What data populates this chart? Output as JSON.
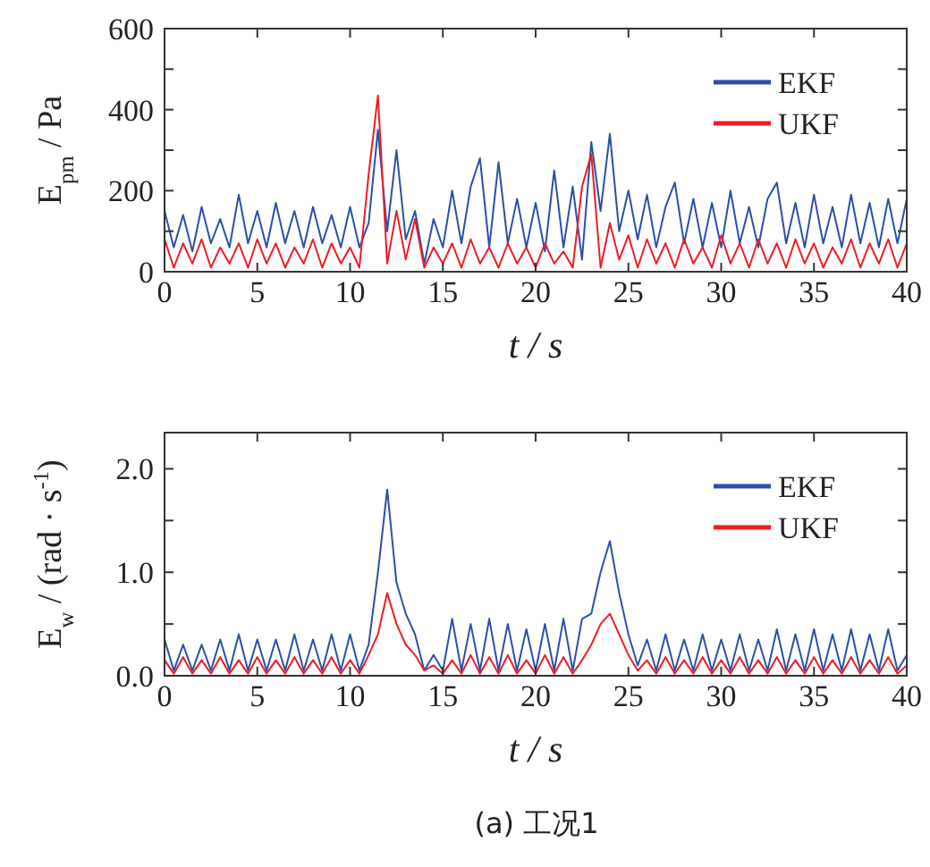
{
  "chart_data": [
    {
      "type": "line",
      "xlabel": "t / s",
      "ylabel": "E$_{pm}$ / Pa",
      "xlim": [
        0,
        40
      ],
      "ylim": [
        0,
        600
      ],
      "xticks": [
        0,
        5,
        10,
        15,
        20,
        25,
        30,
        35,
        40
      ],
      "yticks": [
        0,
        {
          "value": 100,
          "label": null
        },
        200,
        {
          "value": 300,
          "label": null
        },
        400,
        {
          "value": 500,
          "label": null
        },
        600
      ],
      "legend": "top right",
      "grid": false,
      "x": [
        0,
        0.5,
        1,
        1.5,
        2,
        2.5,
        3,
        3.5,
        4,
        4.5,
        5,
        5.5,
        6,
        6.5,
        7,
        7.5,
        8,
        8.5,
        9,
        9.5,
        10,
        10.5,
        11,
        11.5,
        12,
        12.5,
        13,
        13.5,
        14,
        14.5,
        15,
        15.5,
        16,
        16.5,
        17,
        17.5,
        18,
        18.5,
        19,
        19.5,
        20,
        20.5,
        21,
        21.5,
        22,
        22.5,
        23,
        23.5,
        24,
        24.5,
        25,
        25.5,
        26,
        26.5,
        27,
        27.5,
        28,
        28.5,
        29,
        29.5,
        30,
        30.5,
        31,
        31.5,
        32,
        32.5,
        33,
        33.5,
        34,
        34.5,
        35,
        35.5,
        36,
        36.5,
        37,
        37.5,
        38,
        38.5,
        39,
        39.5,
        40
      ],
      "series": [
        {
          "name": "EKF",
          "color": "#2a4fa8",
          "values": [
            150,
            60,
            140,
            50,
            160,
            70,
            130,
            60,
            190,
            70,
            150,
            60,
            170,
            70,
            150,
            60,
            160,
            70,
            140,
            60,
            160,
            60,
            120,
            350,
            100,
            300,
            80,
            150,
            20,
            130,
            60,
            200,
            70,
            210,
            280,
            60,
            270,
            70,
            180,
            60,
            170,
            50,
            250,
            60,
            210,
            30,
            320,
            150,
            340,
            100,
            200,
            80,
            190,
            60,
            160,
            220,
            70,
            180,
            60,
            170,
            60,
            200,
            70,
            160,
            60,
            180,
            220,
            70,
            170,
            60,
            190,
            70,
            160,
            60,
            190,
            70,
            170,
            60,
            180,
            70,
            180
          ]
        },
        {
          "name": "UKF",
          "color": "#ee1c25",
          "values": [
            80,
            10,
            70,
            20,
            80,
            10,
            60,
            20,
            70,
            10,
            80,
            20,
            70,
            10,
            60,
            20,
            80,
            10,
            70,
            20,
            60,
            10,
            240,
            435,
            20,
            150,
            30,
            130,
            10,
            60,
            20,
            70,
            10,
            80,
            20,
            60,
            10,
            70,
            20,
            60,
            10,
            70,
            20,
            50,
            10,
            210,
            290,
            10,
            120,
            30,
            90,
            10,
            80,
            20,
            70,
            10,
            80,
            20,
            60,
            10,
            90,
            20,
            70,
            10,
            80,
            20,
            70,
            10,
            80,
            20,
            70,
            10,
            60,
            20,
            80,
            10,
            70,
            20,
            80,
            10,
            70
          ]
        }
      ]
    },
    {
      "type": "line",
      "xlabel": "t / s",
      "ylabel": "E$_{w}$ / (rad · s$^{-1}$)",
      "xlim": [
        0,
        40
      ],
      "ylim": [
        0,
        2.35
      ],
      "xticks": [
        0,
        5,
        10,
        15,
        20,
        25,
        30,
        35,
        40
      ],
      "yticks": [
        {
          "value": 0,
          "label": "0.0"
        },
        {
          "value": 0.5,
          "label": null
        },
        {
          "value": 1,
          "label": "1.0"
        },
        {
          "value": 1.5,
          "label": null
        },
        {
          "value": 2,
          "label": "2.0"
        }
      ],
      "legend": "top right",
      "grid": false,
      "annotations": [
        "(a) 工况1"
      ],
      "x": [
        0,
        0.5,
        1,
        1.5,
        2,
        2.5,
        3,
        3.5,
        4,
        4.5,
        5,
        5.5,
        6,
        6.5,
        7,
        7.5,
        8,
        8.5,
        9,
        9.5,
        10,
        10.5,
        11,
        11.5,
        12,
        12.5,
        13,
        13.5,
        14,
        14.5,
        15,
        15.5,
        16,
        16.5,
        17,
        17.5,
        18,
        18.5,
        19,
        19.5,
        20,
        20.5,
        21,
        21.5,
        22,
        22.5,
        23,
        23.5,
        24,
        24.5,
        25,
        25.5,
        26,
        26.5,
        27,
        27.5,
        28,
        28.5,
        29,
        29.5,
        30,
        30.5,
        31,
        31.5,
        32,
        32.5,
        33,
        33.5,
        34,
        34.5,
        35,
        35.5,
        36,
        36.5,
        37,
        37.5,
        38,
        38.5,
        39,
        39.5,
        40
      ],
      "series": [
        {
          "name": "EKF",
          "color": "#2a4fa8",
          "values": [
            0.35,
            0.05,
            0.3,
            0.05,
            0.3,
            0.05,
            0.35,
            0.05,
            0.4,
            0.05,
            0.35,
            0.05,
            0.35,
            0.05,
            0.4,
            0.05,
            0.35,
            0.05,
            0.4,
            0.05,
            0.4,
            0.05,
            0.3,
            1.0,
            1.8,
            0.9,
            0.6,
            0.4,
            0.05,
            0.2,
            0.05,
            0.55,
            0.05,
            0.5,
            0.05,
            0.55,
            0.05,
            0.5,
            0.05,
            0.45,
            0.05,
            0.5,
            0.05,
            0.55,
            0.05,
            0.55,
            0.6,
            1.0,
            1.3,
            0.8,
            0.4,
            0.1,
            0.35,
            0.05,
            0.4,
            0.05,
            0.35,
            0.05,
            0.4,
            0.05,
            0.35,
            0.05,
            0.4,
            0.05,
            0.35,
            0.05,
            0.45,
            0.05,
            0.4,
            0.05,
            0.45,
            0.05,
            0.4,
            0.05,
            0.45,
            0.05,
            0.4,
            0.05,
            0.45,
            0.05,
            0.2
          ]
        },
        {
          "name": "UKF",
          "color": "#ee1c25",
          "values": [
            0.15,
            0.02,
            0.18,
            0.02,
            0.15,
            0.02,
            0.18,
            0.02,
            0.15,
            0.02,
            0.18,
            0.02,
            0.15,
            0.02,
            0.18,
            0.02,
            0.15,
            0.02,
            0.18,
            0.02,
            0.15,
            0.02,
            0.2,
            0.4,
            0.8,
            0.5,
            0.3,
            0.2,
            0.05,
            0.1,
            0.02,
            0.15,
            0.02,
            0.2,
            0.02,
            0.18,
            0.02,
            0.2,
            0.02,
            0.15,
            0.02,
            0.2,
            0.02,
            0.18,
            0.02,
            0.15,
            0.3,
            0.5,
            0.6,
            0.4,
            0.2,
            0.05,
            0.15,
            0.02,
            0.18,
            0.02,
            0.15,
            0.02,
            0.18,
            0.02,
            0.15,
            0.02,
            0.18,
            0.02,
            0.15,
            0.02,
            0.18,
            0.02,
            0.15,
            0.02,
            0.18,
            0.02,
            0.15,
            0.02,
            0.18,
            0.02,
            0.15,
            0.02,
            0.18,
            0.02,
            0.1
          ]
        }
      ]
    }
  ]
}
